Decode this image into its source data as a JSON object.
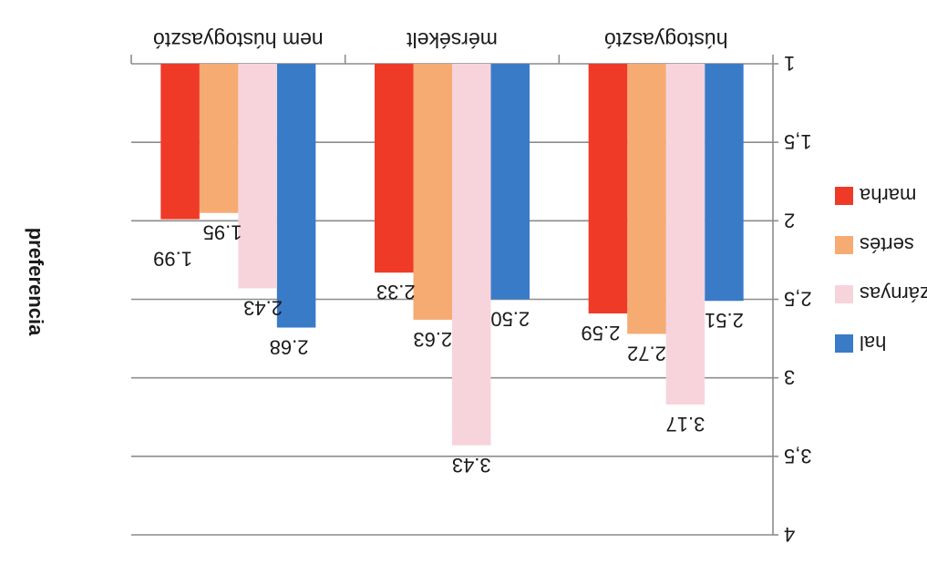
{
  "chart_data": {
    "type": "bar",
    "orientation": "rotated-180",
    "categories": [
      "hústogyasztó",
      "mérsékelt",
      "nem hústogyasztó"
    ],
    "series": [
      {
        "name": "hal",
        "color": "#3a7bc8",
        "values": [
          2.51,
          2.5,
          2.68
        ]
      },
      {
        "name": "szárnyas",
        "color": "#f7d4dc",
        "values": [
          3.17,
          3.43,
          2.43
        ]
      },
      {
        "name": "sertés",
        "color": "#f6ab72",
        "values": [
          2.72,
          2.63,
          1.95
        ]
      },
      {
        "name": "marha",
        "color": "#ef3a28",
        "values": [
          2.59,
          2.33,
          1.99
        ]
      }
    ],
    "data_labels": [
      [
        "2.51",
        "2.50",
        "2.68"
      ],
      [
        "3.17",
        "3.43",
        "2.43"
      ],
      [
        "2.72",
        "2.63",
        "1.95"
      ],
      [
        "2.59",
        "2.33",
        "1.99"
      ]
    ],
    "ylabel": "preferencia",
    "xlabel": "",
    "title": "",
    "ylim": [
      1,
      4
    ],
    "yticks": [
      1,
      1.5,
      2,
      2.5,
      3,
      3.5,
      4
    ],
    "ytick_labels": [
      "1",
      "1,5",
      "2",
      "2,5",
      "3",
      "3,5",
      "4"
    ],
    "grid": true,
    "legend": {
      "placement": "right",
      "entries": [
        "marha",
        "sertés",
        "szárnyas",
        "hal"
      ]
    }
  }
}
